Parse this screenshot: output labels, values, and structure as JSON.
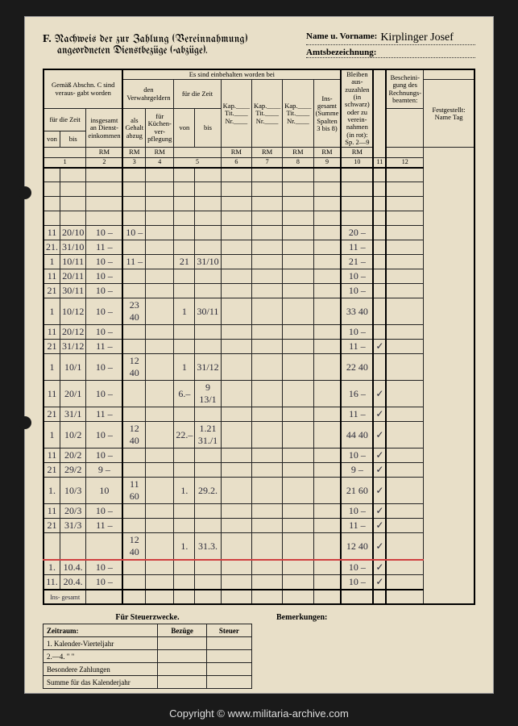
{
  "header": {
    "section_letter": "F.",
    "title_line1": "Nachweis der zur Zahlung (Vereinnahmung)",
    "title_line2": "angeordneten Dienstbezüge (-abzüge).",
    "name_label": "Name u. Vorname:",
    "name_value": "Kirplinger Josef",
    "amt_label": "Amtsbezeichnung:",
    "amt_value": ""
  },
  "table_headers": {
    "col_group_1": "Gemäß Abschn. C sind veraus- gabt worden",
    "col_group_2": "Es sind einbehalten worden bei",
    "sub_zeit": "für die Zeit",
    "sub_von": "von",
    "sub_bis": "bis",
    "sub_insgesamt": "insgesamt an Dienst- einkommen",
    "sub_verwahr": "den Verwahrgeldern",
    "sub_als": "als Gehalt abzug",
    "sub_kuchen": "für Küchen- ver- pflegung",
    "sub_zeit2": "für die Zeit",
    "sub_kap1": "Kap.____ Tit.____ Nr.____",
    "sub_kap2": "Kap.____ Tit.____ Nr.____",
    "sub_kap3": "Kap.____ Tit.____ Nr.____",
    "sub_summe": "Ins- gesamt (Summe Spalten 3 bis 8)",
    "col_10": "Bleiben aus- zuzahlen (in schwarz) oder zu verein- nahmen (in rot): Sp. 2—9",
    "col_11": "",
    "col_12": "Bescheini- gung des Rechnungs- beamten:",
    "col_12b": "Festgestellt: Name Tag",
    "rm": "RM"
  },
  "col_numbers": [
    "1",
    "2",
    "3",
    "4",
    "5",
    "6",
    "7",
    "8",
    "9",
    "10",
    "11",
    "12"
  ],
  "rows": [
    {
      "von": "",
      "bis": "",
      "c2": "",
      "c3": "",
      "c4": "",
      "c5v": "",
      "c5b": "",
      "c6": "",
      "c7": "",
      "c8": "",
      "c9": "",
      "c10": "",
      "c11": "",
      "c12": ""
    },
    {
      "von": "",
      "bis": "",
      "c2": "",
      "c3": "",
      "c4": "",
      "c5v": "",
      "c5b": "",
      "c6": "",
      "c7": "",
      "c8": "",
      "c9": "",
      "c10": "",
      "c11": "",
      "c12": ""
    },
    {
      "von": "",
      "bis": "",
      "c2": "",
      "c3": "",
      "c4": "",
      "c5v": "",
      "c5b": "",
      "c6": "",
      "c7": "",
      "c8": "",
      "c9": "",
      "c10": "",
      "c11": "",
      "c12": ""
    },
    {
      "von": "",
      "bis": "",
      "c2": "",
      "c3": "",
      "c4": "",
      "c5v": "",
      "c5b": "",
      "c6": "",
      "c7": "",
      "c8": "",
      "c9": "",
      "c10": "",
      "c11": "",
      "c12": ""
    },
    {
      "von": "11",
      "bis": "20/10",
      "c2": "10 –",
      "c3": "10 –",
      "c4": "",
      "c5v": "",
      "c5b": "",
      "c6": "",
      "c7": "",
      "c8": "",
      "c9": "",
      "c10": "20 –",
      "c11": "",
      "c12": ""
    },
    {
      "von": "21.",
      "bis": "31/10",
      "c2": "11 –",
      "c3": "",
      "c4": "",
      "c5v": "",
      "c5b": "",
      "c6": "",
      "c7": "",
      "c8": "",
      "c9": "",
      "c10": "11 –",
      "c11": "",
      "c12": ""
    },
    {
      "von": "1",
      "bis": "10/11",
      "c2": "10 –",
      "c3": "11 –",
      "c4": "",
      "c5v": "21",
      "c5b": "31/10",
      "c6": "",
      "c7": "",
      "c8": "",
      "c9": "",
      "c10": "21 –",
      "c11": "",
      "c12": ""
    },
    {
      "von": "11",
      "bis": "20/11",
      "c2": "10 –",
      "c3": "",
      "c4": "",
      "c5v": "",
      "c5b": "",
      "c6": "",
      "c7": "",
      "c8": "",
      "c9": "",
      "c10": "10 –",
      "c11": "",
      "c12": ""
    },
    {
      "von": "21",
      "bis": "30/11",
      "c2": "10 –",
      "c3": "",
      "c4": "",
      "c5v": "",
      "c5b": "",
      "c6": "",
      "c7": "",
      "c8": "",
      "c9": "",
      "c10": "10 –",
      "c11": "",
      "c12": ""
    },
    {
      "von": "1",
      "bis": "10/12",
      "c2": "10 –",
      "c3": "23 40",
      "c4": "",
      "c5v": "1",
      "c5b": "30/11",
      "c6": "",
      "c7": "",
      "c8": "",
      "c9": "",
      "c10": "33 40",
      "c11": "",
      "c12": ""
    },
    {
      "von": "11",
      "bis": "20/12",
      "c2": "10 –",
      "c3": "",
      "c4": "",
      "c5v": "",
      "c5b": "",
      "c6": "",
      "c7": "",
      "c8": "",
      "c9": "",
      "c10": "10 –",
      "c11": "",
      "c12": ""
    },
    {
      "von": "21",
      "bis": "31/12",
      "c2": "11 –",
      "c3": "",
      "c4": "",
      "c5v": "",
      "c5b": "",
      "c6": "",
      "c7": "",
      "c8": "",
      "c9": "",
      "c10": "11 –",
      "c11": "✓",
      "c12": ""
    },
    {
      "von": "1",
      "bis": "10/1",
      "c2": "10 –",
      "c3": "12 40",
      "c4": "",
      "c5v": "1",
      "c5b": "31/12",
      "c6": "",
      "c7": "",
      "c8": "",
      "c9": "",
      "c10": "22 40",
      "c11": "",
      "c12": ""
    },
    {
      "von": "11",
      "bis": "20/1",
      "c2": "10 –",
      "c3": "",
      "c4": "",
      "c5v": "6.–",
      "c5b": "9 13/1",
      "c6": "",
      "c7": "",
      "c8": "",
      "c9": "",
      "c10": "16 –",
      "c11": "✓",
      "c12": ""
    },
    {
      "von": "21",
      "bis": "31/1",
      "c2": "11 –",
      "c3": "",
      "c4": "",
      "c5v": "",
      "c5b": "",
      "c6": "",
      "c7": "",
      "c8": "",
      "c9": "",
      "c10": "11 –",
      "c11": "✓",
      "c12": ""
    },
    {
      "von": "1",
      "bis": "10/2",
      "c2": "10 –",
      "c3": "12 40",
      "c4": "",
      "c5v": "22.–",
      "c5b": "1.21 31./1",
      "c6": "",
      "c7": "",
      "c8": "",
      "c9": "",
      "c10": "44 40",
      "c11": "✓",
      "c12": ""
    },
    {
      "von": "11",
      "bis": "20/2",
      "c2": "10 –",
      "c3": "",
      "c4": "",
      "c5v": "",
      "c5b": "",
      "c6": "",
      "c7": "",
      "c8": "",
      "c9": "",
      "c10": "10 –",
      "c11": "✓",
      "c12": ""
    },
    {
      "von": "21",
      "bis": "29/2",
      "c2": "9 –",
      "c3": "",
      "c4": "",
      "c5v": "",
      "c5b": "",
      "c6": "",
      "c7": "",
      "c8": "",
      "c9": "",
      "c10": "9 –",
      "c11": "✓",
      "c12": ""
    },
    {
      "von": "1.",
      "bis": "10/3",
      "c2": "10",
      "c3": "11 60",
      "c4": "",
      "c5v": "1.",
      "c5b": "29.2.",
      "c6": "",
      "c7": "",
      "c8": "",
      "c9": "",
      "c10": "21 60",
      "c11": "✓",
      "c12": ""
    },
    {
      "von": "11",
      "bis": "20/3",
      "c2": "10 –",
      "c3": "",
      "c4": "",
      "c5v": "",
      "c5b": "",
      "c6": "",
      "c7": "",
      "c8": "",
      "c9": "",
      "c10": "10 –",
      "c11": "✓",
      "c12": ""
    },
    {
      "von": "21",
      "bis": "31/3",
      "c2": "11 –",
      "c3": "",
      "c4": "",
      "c5v": "",
      "c5b": "",
      "c6": "",
      "c7": "",
      "c8": "",
      "c9": "",
      "c10": "11 –",
      "c11": "✓",
      "c12": ""
    },
    {
      "von": "",
      "bis": "",
      "c2": "",
      "c3": "12 40",
      "c4": "",
      "c5v": "1.",
      "c5b": "31.3.",
      "c6": "",
      "c7": "",
      "c8": "",
      "c9": "",
      "c10": "12 40",
      "c11": "✓",
      "c12": "",
      "redline": true
    },
    {
      "von": "1.",
      "bis": "10.4.",
      "c2": "10 –",
      "c3": "",
      "c4": "",
      "c5v": "",
      "c5b": "",
      "c6": "",
      "c7": "",
      "c8": "",
      "c9": "",
      "c10": "10 –",
      "c11": "✓",
      "c12": ""
    },
    {
      "von": "11.",
      "bis": "20.4.",
      "c2": "10 –",
      "c3": "",
      "c4": "",
      "c5v": "",
      "c5b": "",
      "c6": "",
      "c7": "",
      "c8": "",
      "c9": "",
      "c10": "10 –",
      "c11": "✓",
      "c12": ""
    }
  ],
  "total_label": "Ins- gesamt",
  "tax": {
    "title": "Für Steuerzwecke.",
    "col_zeitraum": "Zeitraum:",
    "col_bezuge": "Bezüge",
    "col_steuer": "Steuer",
    "row1": "1. Kalender-Vierteljahr",
    "row2": "2.—4.       \"        \"",
    "row3": "Besondere Zahlungen",
    "row4": "Summe für das Kalenderjahr"
  },
  "remarks_label": "Bemerkungen:",
  "copyright": "Copyright © www.militaria-archive.com"
}
